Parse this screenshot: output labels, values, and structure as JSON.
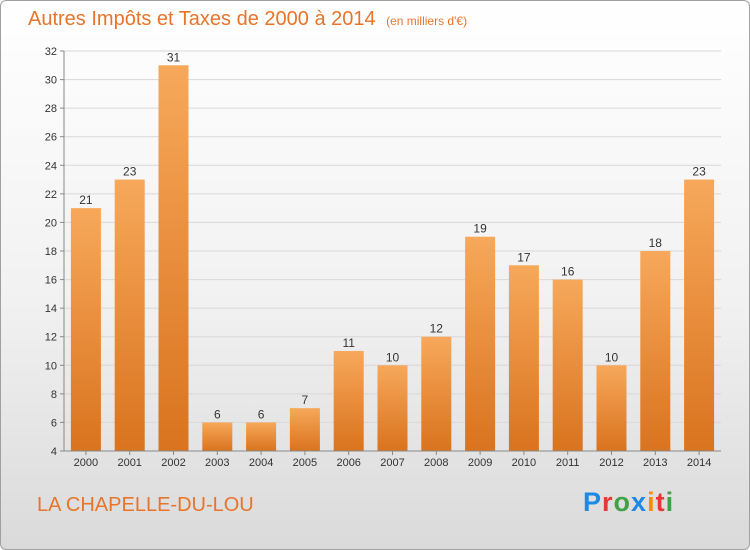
{
  "title": {
    "main": "Autres Impôts et Taxes de 2000 à 2014",
    "unit": "(en milliers d'€)"
  },
  "commune": "LA CHAPELLE-DU-LOU",
  "logo": {
    "text": "Proxiti",
    "colors": [
      "#1e88e5",
      "#e53935",
      "#43a047",
      "#1e88e5",
      "#fb8c00",
      "#e53935",
      "#43a047"
    ]
  },
  "colors": {
    "bar_light": "#f7a85a",
    "bar_dark": "#d9731f",
    "accent": "#e8742a",
    "axis": "#888888",
    "grid": "#d8d8d8",
    "text": "#333333"
  },
  "chart_data": {
    "type": "bar",
    "title": "Autres Impôts et Taxes de 2000 à 2014",
    "subtitle": "(en milliers d'€)",
    "xlabel": "",
    "ylabel": "",
    "categories": [
      "2000",
      "2001",
      "2002",
      "2003",
      "2004",
      "2005",
      "2006",
      "2007",
      "2008",
      "2009",
      "2010",
      "2011",
      "2012",
      "2013",
      "2014"
    ],
    "values": [
      21,
      23,
      31,
      6,
      6,
      7,
      11,
      10,
      12,
      19,
      17,
      16,
      10,
      18,
      23
    ],
    "data_labels": [
      "21",
      "23",
      "31",
      "6",
      "6",
      "7",
      "11",
      "10",
      "12",
      "19",
      "17",
      "16",
      "10",
      "18",
      "23"
    ],
    "ylim": [
      4,
      32
    ],
    "yticks": [
      4,
      6,
      8,
      10,
      12,
      14,
      16,
      18,
      20,
      22,
      24,
      26,
      28,
      30,
      32
    ],
    "ytick_labels": [
      "4",
      "6",
      "8",
      "10",
      "12",
      "14",
      "16",
      "18",
      "20",
      "22",
      "24",
      "26",
      "28",
      "30",
      "32"
    ],
    "grid": true,
    "legend": "none"
  }
}
